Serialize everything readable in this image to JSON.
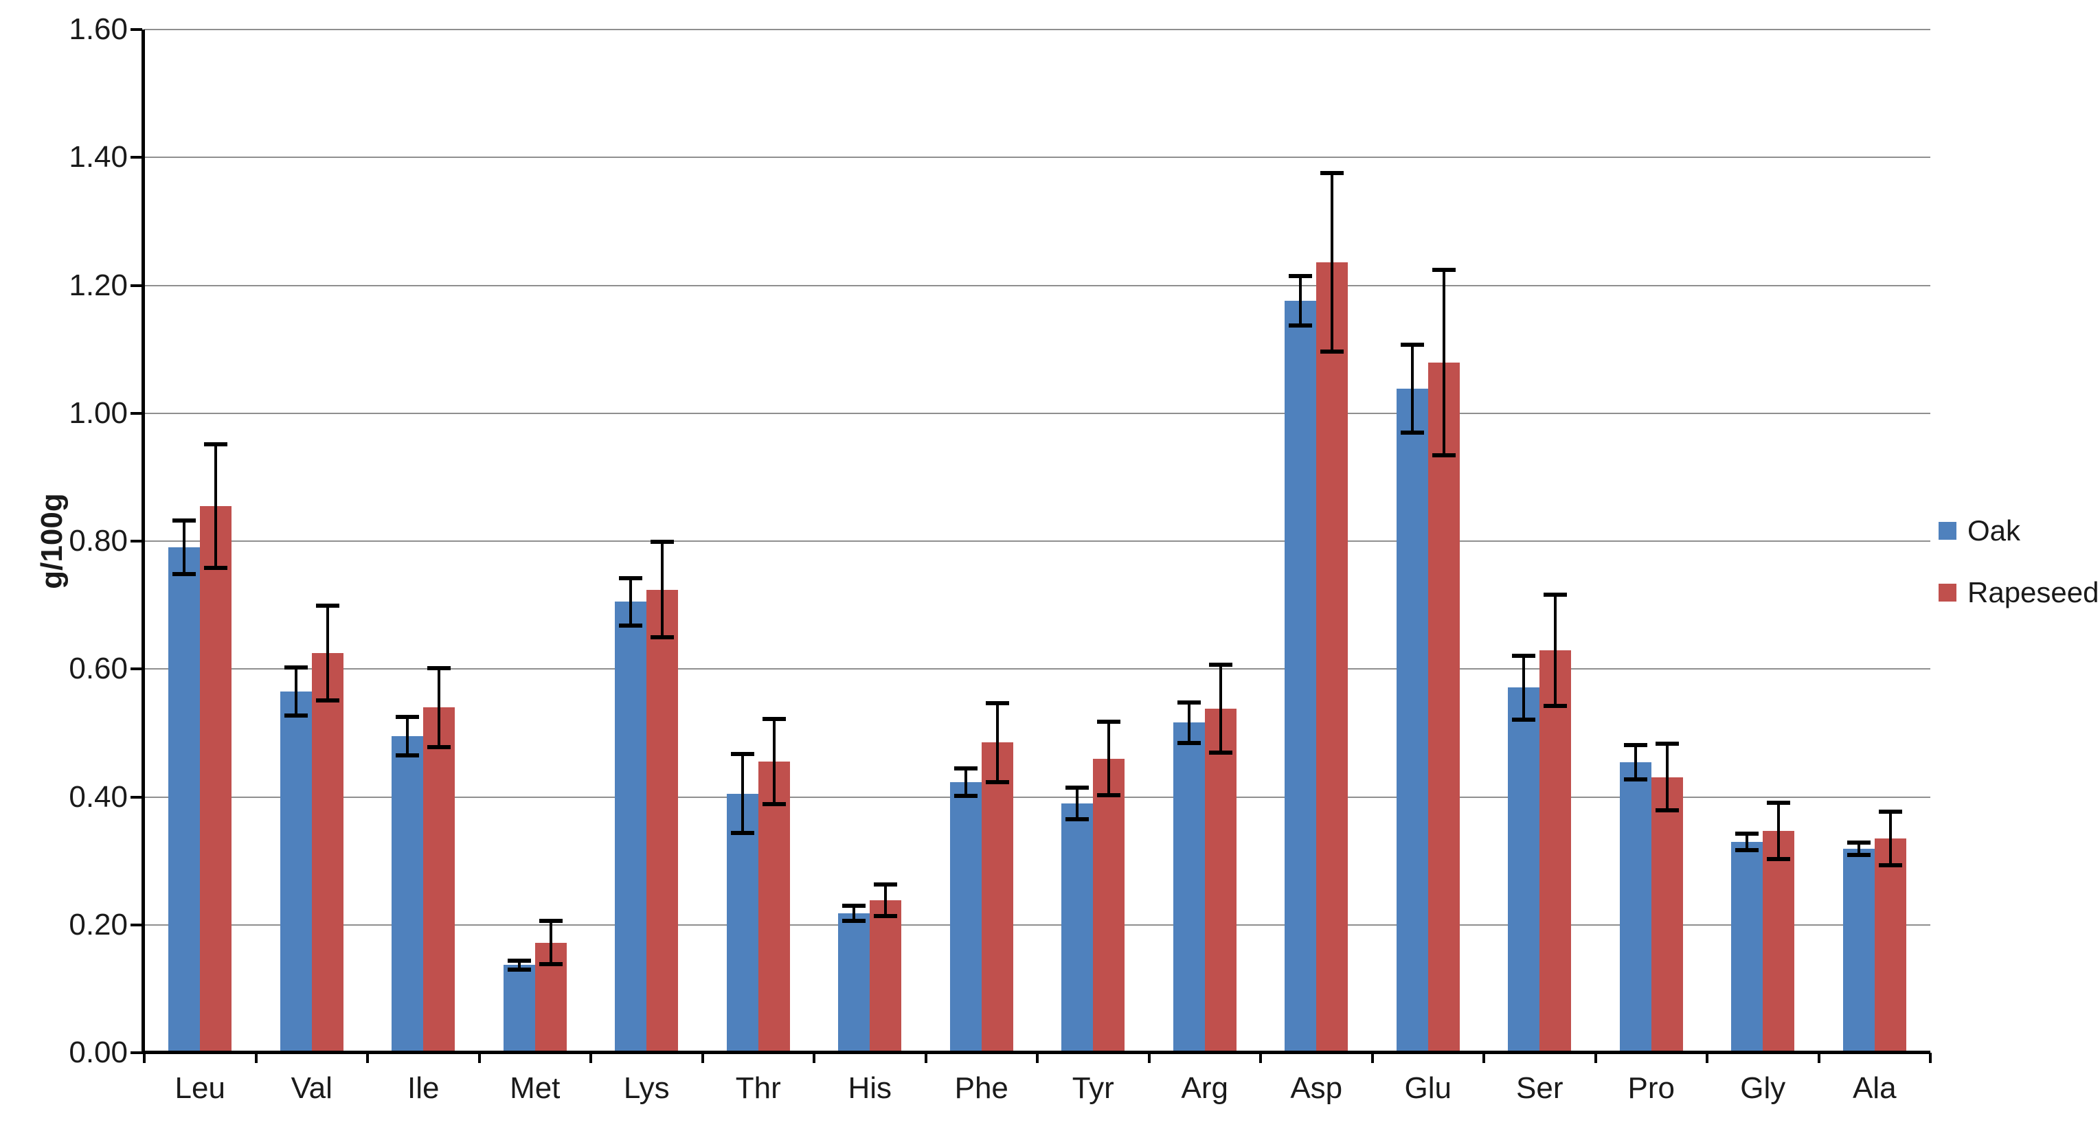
{
  "chart_data": {
    "type": "bar",
    "title": "",
    "xlabel": "",
    "ylabel": "g/100g",
    "ylim": [
      0,
      1.6
    ],
    "ytick_step": 0.2,
    "ytick_labels": [
      "0.00",
      "0.20",
      "0.40",
      "0.60",
      "0.80",
      "1.00",
      "1.20",
      "1.40",
      "1.60"
    ],
    "grid": true,
    "gridline_color": "#8f8f8f",
    "axis_color": "#000000",
    "legend_position": "right",
    "categories": [
      "Leu",
      "Val",
      "Ile",
      "Met",
      "Lys",
      "Thr",
      "His",
      "Phe",
      "Tyr",
      "Arg",
      "Asp",
      "Glu",
      "Ser",
      "Pro",
      "Gly",
      "Ala"
    ],
    "series": [
      {
        "name": "Oak",
        "color": "#4F81BD",
        "values": [
          0.79,
          0.565,
          0.495,
          0.137,
          0.705,
          0.405,
          0.218,
          0.423,
          0.39,
          0.516,
          1.176,
          1.038,
          0.571,
          0.454,
          0.33,
          0.319
        ],
        "errors": [
          0.045,
          0.041,
          0.033,
          0.01,
          0.04,
          0.065,
          0.015,
          0.025,
          0.028,
          0.035,
          0.042,
          0.072,
          0.053,
          0.03,
          0.016,
          0.013
        ]
      },
      {
        "name": "Rapeseed",
        "color": "#C0504D",
        "values": [
          0.855,
          0.625,
          0.54,
          0.172,
          0.724,
          0.455,
          0.238,
          0.485,
          0.46,
          0.538,
          1.236,
          1.079,
          0.629,
          0.431,
          0.347,
          0.335
        ],
        "errors": [
          0.1,
          0.077,
          0.065,
          0.037,
          0.078,
          0.07,
          0.028,
          0.065,
          0.061,
          0.072,
          0.143,
          0.148,
          0.09,
          0.055,
          0.047,
          0.045
        ]
      }
    ]
  }
}
